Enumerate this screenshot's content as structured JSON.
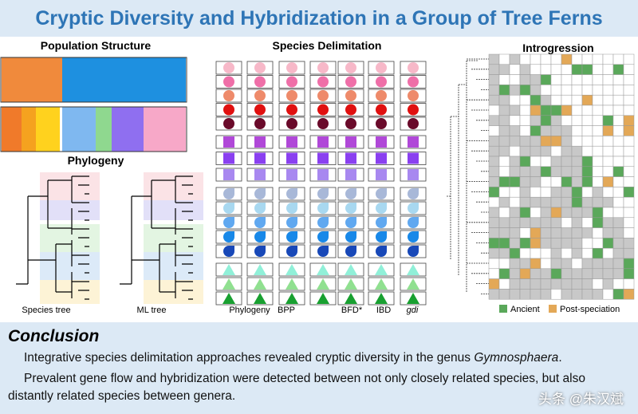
{
  "header": {
    "title": "Cryptic Diversity and Hybridization in a Group of Tree Ferns"
  },
  "panels": {
    "population_structure": {
      "title": "Population Structure"
    },
    "phylogeny": {
      "title": "Phylogeny",
      "labels": [
        "Species tree",
        "ML tree"
      ]
    },
    "species_delimitation": {
      "title": "Species Delimitation",
      "methods": [
        "Phylogeny",
        "BPP",
        "BFD*",
        "IBD",
        "gdi"
      ]
    },
    "introgression": {
      "title": "Introgression",
      "legend": [
        "Ancient",
        "Post-speciation"
      ]
    }
  },
  "conclusion": {
    "heading": "Conclusion",
    "paragraphs": [
      {
        "text": "Integrative species delimitation approaches revealed cryptic diversity in the genus ",
        "italic": "Gymnosphaera",
        "end": "."
      },
      {
        "text": "Prevalent gene flow and hybridization were detected between not only closely related species, but also distantly related species between genera."
      }
    ]
  },
  "watermark": "头条 @朱汉斌"
}
